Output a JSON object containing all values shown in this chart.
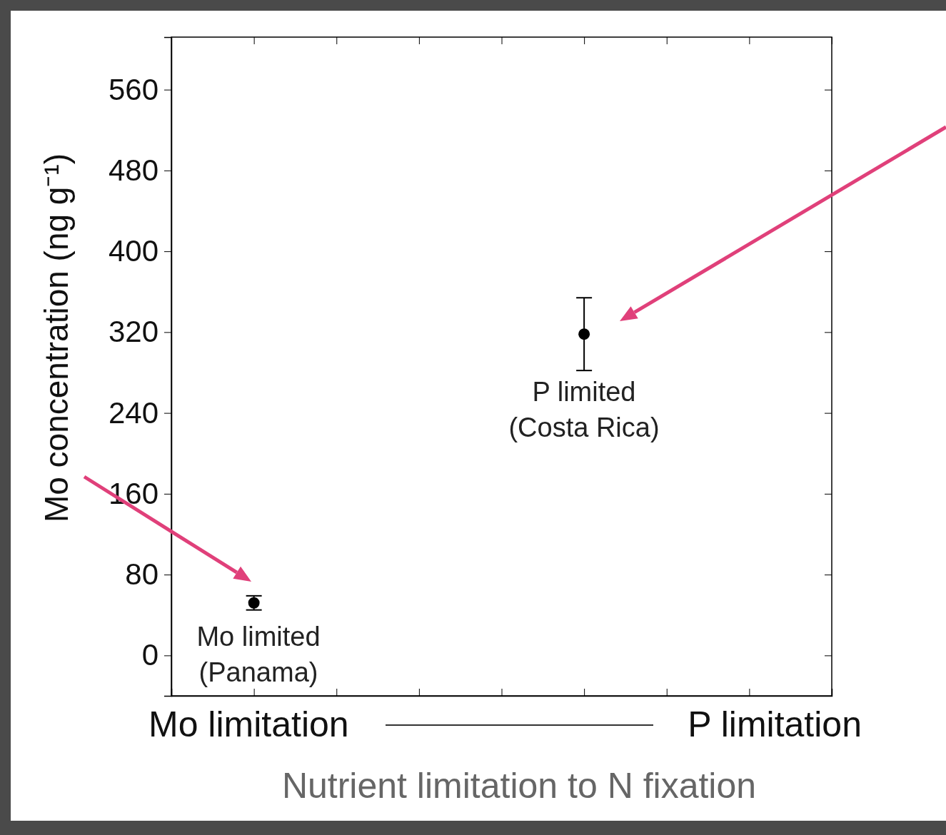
{
  "chart_data": {
    "type": "scatter",
    "xlabel": "Nutrient limitation to N fixation",
    "ylabel": "Mo concentration (ng g⁻¹)",
    "categories": [
      null,
      null,
      null,
      null,
      null,
      null,
      null,
      null,
      null
    ],
    "series": [
      {
        "color": "#000000",
        "values": [
          null,
          52,
          null,
          null,
          null,
          318,
          null,
          null,
          null
        ],
        "errors": [
          null,
          7,
          null,
          null,
          null,
          36,
          null,
          null,
          null
        ]
      }
    ],
    "ylim": [
      -40,
      612
    ],
    "yticks": [
      0,
      80,
      160,
      240,
      320,
      400,
      480,
      560
    ],
    "marker": "circle",
    "tick_labels": "y",
    "annotations": [
      "Mo limitation",
      "P limitation",
      "Mo limited\n(Panama)",
      "P limited\n(Costa Rica)"
    ]
  }
}
